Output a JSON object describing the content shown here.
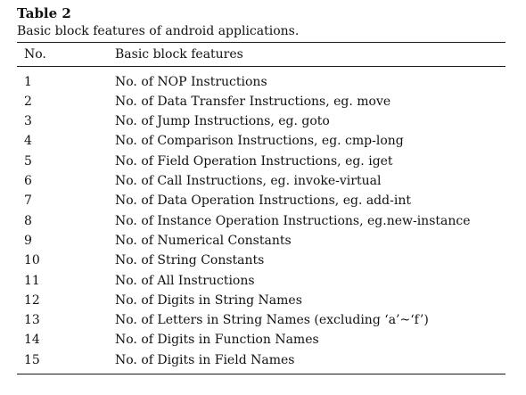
{
  "table": {
    "label": "Table 2",
    "caption": "Basic block features of android applications.",
    "headers": [
      "No.",
      "Basic block features"
    ],
    "rows": [
      {
        "no": "1",
        "feature": "No. of NOP Instructions"
      },
      {
        "no": "2",
        "feature": "No. of Data Transfer Instructions, eg. move"
      },
      {
        "no": "3",
        "feature": "No. of Jump Instructions, eg. goto"
      },
      {
        "no": "4",
        "feature": "No. of Comparison Instructions, eg. cmp-long"
      },
      {
        "no": "5",
        "feature": "No. of Field Operation Instructions, eg. iget"
      },
      {
        "no": "6",
        "feature": "No. of Call Instructions, eg. invoke-virtual"
      },
      {
        "no": "7",
        "feature": "No. of Data Operation Instructions, eg. add-int"
      },
      {
        "no": "8",
        "feature": "No. of Instance Operation Instructions, eg.new-instance"
      },
      {
        "no": "9",
        "feature": "No. of Numerical Constants"
      },
      {
        "no": "10",
        "feature": "No. of String Constants"
      },
      {
        "no": "11",
        "feature": "No. of All Instructions"
      },
      {
        "no": "12",
        "feature": "No. of Digits in String Names"
      },
      {
        "no": "13",
        "feature": "No. of Letters in String Names (excluding ‘a’~‘f’)"
      },
      {
        "no": "14",
        "feature": "No. of Digits in Function Names"
      },
      {
        "no": "15",
        "feature": "No. of Digits in Field Names"
      }
    ]
  }
}
